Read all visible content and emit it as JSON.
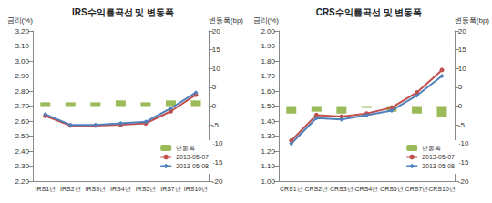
{
  "chart_data": [
    {
      "type": "line",
      "title": "IRS수익률곡선 및 변동폭",
      "y_label": "금리(%)",
      "y2_label": "변동폭(bp)",
      "categories": [
        "IRS1년",
        "IRS2년",
        "IRS3년",
        "IRS4년",
        "IRS5년",
        "IRS7년",
        "IRS10년"
      ],
      "series": [
        {
          "name": "변동폭",
          "type": "bar",
          "axis": "y2",
          "color": "#9bbb59",
          "values": [
            1,
            1,
            1,
            1.5,
            1,
            1.5,
            1.5
          ]
        },
        {
          "name": "2013-05-07",
          "type": "line",
          "color": "#c0504d",
          "marker": "circle",
          "values": [
            2.635,
            2.57,
            2.57,
            2.575,
            2.585,
            2.665,
            2.775
          ]
        },
        {
          "name": "2013-05-08",
          "type": "line",
          "color": "#4f81bd",
          "marker": "diamond",
          "values": [
            2.645,
            2.575,
            2.575,
            2.585,
            2.595,
            2.685,
            2.79
          ]
        }
      ],
      "ylim": [
        2.2,
        3.2
      ],
      "yticks": [
        {
          "value": 2.2,
          "label": "2.20"
        },
        {
          "value": 2.3,
          "label": "2.30"
        },
        {
          "value": 2.4,
          "label": "2.40"
        },
        {
          "value": 2.5,
          "label": "2.50"
        },
        {
          "value": 2.6,
          "label": "2.60"
        },
        {
          "value": 2.7,
          "label": "2.70"
        },
        {
          "value": 2.8,
          "label": "2.80"
        },
        {
          "value": 2.9,
          "label": "2.90"
        },
        {
          "value": 3.0,
          "label": "3.00"
        },
        {
          "value": 3.1,
          "label": "3.10"
        },
        {
          "value": 3.2,
          "label": "3.20"
        }
      ],
      "y2lim": [
        -20,
        20
      ],
      "y2ticks": [
        -20,
        -15,
        -10,
        -5,
        0,
        5,
        10,
        15,
        20
      ],
      "grid": false,
      "legend": "lower right"
    },
    {
      "type": "line",
      "title": "CRS수익률곡선 및 변동폭",
      "y_label": "금리(%)",
      "y2_label": "변동폭(bp)",
      "categories": [
        "CRS1년",
        "CRS2년",
        "CRS3년",
        "CRS4년",
        "CRS5년",
        "CRS7년",
        "CRS10년"
      ],
      "series": [
        {
          "name": "변동폭",
          "type": "bar",
          "axis": "y2",
          "color": "#9bbb59",
          "values": [
            -2,
            -1.5,
            -2,
            -0.5,
            -1.5,
            -2,
            -3
          ]
        },
        {
          "name": "2013-05-07",
          "type": "line",
          "color": "#c0504d",
          "marker": "circle",
          "values": [
            1.27,
            1.44,
            1.43,
            1.45,
            1.49,
            1.59,
            1.74
          ]
        },
        {
          "name": "2013-05-08",
          "type": "line",
          "color": "#4f81bd",
          "marker": "diamond",
          "values": [
            1.25,
            1.42,
            1.41,
            1.44,
            1.47,
            1.57,
            1.7
          ]
        }
      ],
      "ylim": [
        1.0,
        2.0
      ],
      "yticks": [
        {
          "value": 1.0,
          "label": "1.00"
        },
        {
          "value": 1.1,
          "label": "1.10"
        },
        {
          "value": 1.2,
          "label": "1.20"
        },
        {
          "value": 1.3,
          "label": "1.30"
        },
        {
          "value": 1.4,
          "label": "1.40"
        },
        {
          "value": 1.5,
          "label": "1.50"
        },
        {
          "value": 1.6,
          "label": "1.60"
        },
        {
          "value": 1.7,
          "label": "1.70"
        },
        {
          "value": 1.8,
          "label": "1.80"
        },
        {
          "value": 1.9,
          "label": "1.90"
        },
        {
          "value": 2.0,
          "label": "2.00"
        }
      ],
      "y2lim": [
        -20,
        20
      ],
      "y2ticks": [
        -20,
        -15,
        -10,
        -5,
        0,
        5,
        10,
        15,
        20
      ],
      "grid": false,
      "legend": "lower right"
    }
  ]
}
